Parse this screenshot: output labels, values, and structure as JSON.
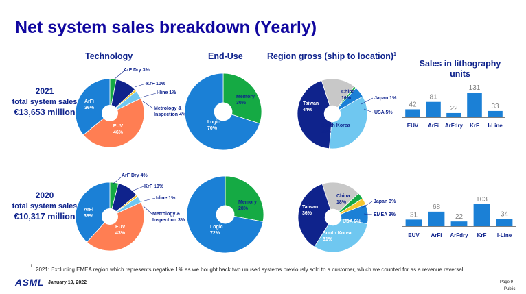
{
  "title": "Net system sales breakdown (Yearly)",
  "sections": {
    "technology": "Technology",
    "end_use": "End-Use",
    "region": "Region gross (ship to location)",
    "region_footnote_mark": "1",
    "litho": "Sales in lithography units"
  },
  "years": [
    {
      "year": "2021",
      "total_label": "total system sales",
      "total_value": "€13,653 million"
    },
    {
      "year": "2020",
      "total_label": "total system sales",
      "total_value": "€10,317 million"
    }
  ],
  "footnote": {
    "mark": "1",
    "text": "2021: Excluding EMEA region which represents negative 1% as we bought back two unused systems previously sold to a customer, which we counted for as a revenue reversal."
  },
  "footer": {
    "logo": "ASML",
    "date": "January 19, 2022",
    "page": "Page 9",
    "classification": "Public"
  },
  "colors": {
    "dark_blue": "#0f238c",
    "light_blue": "#6fc7f0",
    "mid_blue": "#1b80d6",
    "orange": "#ff7e53",
    "green": "#15aa44",
    "gray": "#c8c8c8",
    "yellow": "#f5c631",
    "bar": "#1b80d6"
  },
  "chart_data": [
    {
      "type": "pie",
      "name": "technology_2021",
      "slices": [
        {
          "label": "ArF Dry",
          "value": 3,
          "text": "ArF Dry 3%",
          "color": "#15aa44"
        },
        {
          "label": "KrF",
          "value": 10,
          "text": "KrF 10%",
          "color": "#0f238c"
        },
        {
          "label": "I-line",
          "value": 1,
          "text": "I-line 1%",
          "color": "#f5c631"
        },
        {
          "label": "Metrology & Inspection",
          "value": 4,
          "text": "Metrology & Inspection 4%",
          "color": "#6fc7f0"
        },
        {
          "label": "EUV",
          "value": 46,
          "text": "EUV 46%",
          "color": "#ff7e53"
        },
        {
          "label": "ArFi",
          "value": 36,
          "text": "ArFi 36%",
          "color": "#1b80d6"
        }
      ]
    },
    {
      "type": "pie",
      "name": "enduse_2021",
      "slices": [
        {
          "label": "Memory",
          "value": 30,
          "text": "Memory 30%",
          "color": "#15aa44"
        },
        {
          "label": "Logic",
          "value": 70,
          "text": "Logic 70%",
          "color": "#1b80d6"
        }
      ]
    },
    {
      "type": "pie",
      "name": "region_2021",
      "slices": [
        {
          "label": "China",
          "value": 16,
          "text": "China 16%",
          "color": "#c8c8c8"
        },
        {
          "label": "Japan",
          "value": 1,
          "text": "Japan 1%",
          "color": "#15aa44"
        },
        {
          "label": "USA",
          "value": 5,
          "text": "USA 5%",
          "color": "#1b80d6"
        },
        {
          "label": "South Korea",
          "value": 35,
          "text": "South Korea 35%",
          "color": "#6fc7f0"
        },
        {
          "label": "Taiwan",
          "value": 44,
          "text": "Taiwan 44%",
          "color": "#0f238c"
        }
      ]
    },
    {
      "type": "bar",
      "name": "litho_units_2021",
      "categories": [
        "EUV",
        "ArFi",
        "ArFdry",
        "KrF",
        "I-Line"
      ],
      "values": [
        42,
        81,
        22,
        131,
        33
      ]
    },
    {
      "type": "pie",
      "name": "technology_2020",
      "slices": [
        {
          "label": "ArF Dry",
          "value": 4,
          "text": "ArF Dry 4%",
          "color": "#15aa44"
        },
        {
          "label": "KrF",
          "value": 10,
          "text": "KrF 10%",
          "color": "#0f238c"
        },
        {
          "label": "I-line",
          "value": 1,
          "text": "I-line 1%",
          "color": "#f5c631"
        },
        {
          "label": "Metrology & Inspection",
          "value": 3,
          "text": "Metrology & Inspection 3%",
          "color": "#6fc7f0"
        },
        {
          "label": "EUV",
          "value": 43,
          "text": "EUV 43%",
          "color": "#ff7e53"
        },
        {
          "label": "ArFi",
          "value": 38,
          "text": "ArFi 38%",
          "color": "#1b80d6"
        }
      ]
    },
    {
      "type": "pie",
      "name": "enduse_2020",
      "slices": [
        {
          "label": "Memory",
          "value": 28,
          "text": "Memory 28%",
          "color": "#15aa44"
        },
        {
          "label": "Logic",
          "value": 72,
          "text": "Logic 72%",
          "color": "#1b80d6"
        }
      ]
    },
    {
      "type": "pie",
      "name": "region_2020",
      "slices": [
        {
          "label": "China",
          "value": 18,
          "text": "China 18%",
          "color": "#c8c8c8"
        },
        {
          "label": "Japan",
          "value": 3,
          "text": "Japan 3%",
          "color": "#15aa44"
        },
        {
          "label": "EMEA",
          "value": 3,
          "text": "EMEA 3%",
          "color": "#f5c631"
        },
        {
          "label": "USA",
          "value": 9,
          "text": "USA 9%",
          "color": "#1b80d6"
        },
        {
          "label": "South Korea",
          "value": 31,
          "text": "South Korea 31%",
          "color": "#6fc7f0"
        },
        {
          "label": "Taiwan",
          "value": 36,
          "text": "Taiwan 36%",
          "color": "#0f238c"
        }
      ]
    },
    {
      "type": "bar",
      "name": "litho_units_2020",
      "categories": [
        "EUV",
        "ArFi",
        "ArFdry",
        "KrF",
        "I-Line"
      ],
      "values": [
        31,
        68,
        22,
        103,
        34
      ]
    }
  ]
}
